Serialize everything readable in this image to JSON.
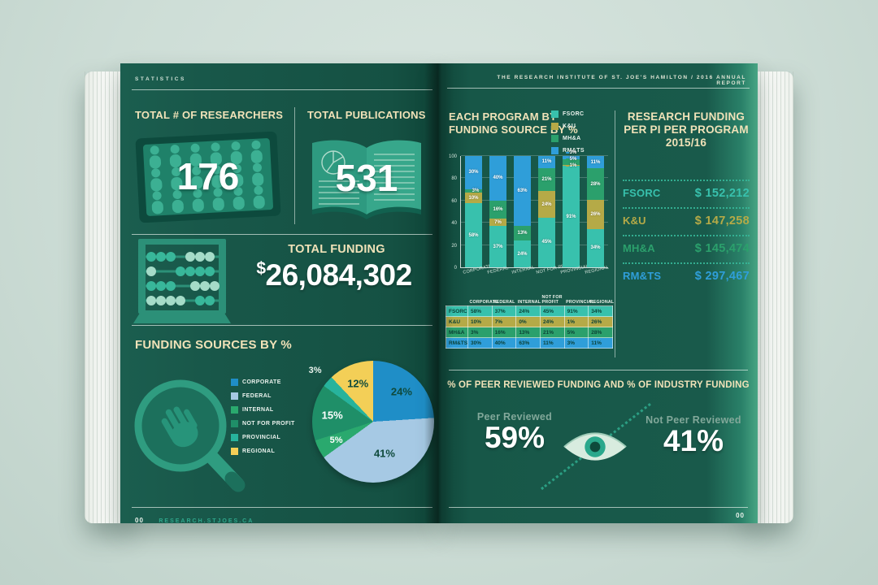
{
  "header": {
    "left": "STATISTICS",
    "right": "THE RESEARCH INSTITUTE OF ST. JOE'S HAMILTON / 2016 ANNUAL REPORT"
  },
  "footer": {
    "left_page_number": "00",
    "left_site": "RESEARCH.STJOES.CA",
    "right_page_number": "00"
  },
  "left_page": {
    "researchers": {
      "title": "TOTAL # OF RESEARCHERS",
      "value": "176"
    },
    "publications": {
      "title": "TOTAL PUBLICATIONS",
      "value": "531"
    },
    "total_funding": {
      "title": "TOTAL FUNDING",
      "currency": "$",
      "amount": "26,084,302"
    },
    "funding_sources": {
      "title": "FUNDING SOURCES BY %"
    }
  },
  "right_page": {
    "program_chart_title_line1": "EACH PROGRAM BY",
    "program_chart_title_line2": "FUNDING SOURCE BY %",
    "per_pi": {
      "title_line1": "RESEARCH FUNDING",
      "title_line2": "PER PI PER PROGRAM",
      "title_line3": "2015/16",
      "rows": [
        {
          "label": "FSORC",
          "value": "$ 152,212",
          "color": "#38c1ad"
        },
        {
          "label": "K&U",
          "value": "$ 147,258",
          "color": "#b5aa47"
        },
        {
          "label": "MH&A",
          "value": "$ 145,474",
          "color": "#2ba06c"
        },
        {
          "label": "RM&TS",
          "value": "$ 297,467",
          "color": "#2f9ed9"
        }
      ]
    },
    "peer": {
      "title": "% OF PEER REVIEWED FUNDING AND % OF INDUSTRY FUNDING",
      "left_label": "Peer Reviewed",
      "left_value": "59%",
      "right_label": "Not Peer Reviewed",
      "right_value": "41%"
    }
  },
  "icons": {
    "researchers": "people-board-icon",
    "publications": "open-book-icon",
    "total_funding": "abacus-icon",
    "funding_sources": "magnifier-hand-icon",
    "peer": "eye-icon"
  },
  "colors": {
    "page_green": "#175748",
    "cream": "#f0e2b8",
    "teal": "#38c1ad",
    "olive": "#b5aa47",
    "green": "#2ba06c",
    "blue": "#2f9ed9",
    "light_blue": "#a6c9e4",
    "yellow": "#f3cf57",
    "sage": "#82a89a"
  },
  "chart_data": [
    {
      "type": "pie",
      "title": "FUNDING SOURCES BY %",
      "labels": [
        "CORPORATE",
        "FEDERAL",
        "INTERNAL",
        "NOT FOR PROFIT",
        "PROVINCIAL",
        "REGIONAL"
      ],
      "values": [
        24,
        41,
        5,
        15,
        3,
        12
      ],
      "colors": [
        "#1f8ec7",
        "#a6c9e4",
        "#2aa96e",
        "#1f8f68",
        "#27b39c",
        "#f3cf57"
      ],
      "label_colors": [
        "#0f4a3c",
        "#0f4a3c",
        "#ffffff",
        "#ffffff",
        "#ffffff",
        "#0f4a3c"
      ],
      "label_format": "percent",
      "legend_position": "left"
    },
    {
      "type": "bar",
      "stacked": true,
      "percent": true,
      "title": "EACH PROGRAM BY FUNDING SOURCE BY %",
      "categories": [
        "CORPORATE",
        "FEDERAL",
        "INTERNAL",
        "NOT FOR PROFIT",
        "PROVINCIAL",
        "REGIONAL"
      ],
      "series": [
        {
          "name": "FSORC",
          "color": "#38c1ad",
          "values": [
            58,
            37,
            24,
            45,
            91,
            34
          ]
        },
        {
          "name": "K&U",
          "color": "#b5aa47",
          "values": [
            10,
            7,
            0,
            24,
            1,
            26
          ]
        },
        {
          "name": "MH&A",
          "color": "#2ba06c",
          "values": [
            3,
            16,
            13,
            21,
            5,
            28
          ]
        },
        {
          "name": "RM&TS",
          "color": "#2f9ed9",
          "values": [
            30,
            40,
            63,
            11,
            3,
            11
          ]
        }
      ],
      "ylim": [
        0,
        100
      ],
      "yticks": [
        0,
        20,
        40,
        60,
        80,
        100
      ],
      "legend_position": "top-right"
    },
    {
      "type": "table",
      "columns": [
        "",
        "CORPORATE",
        "FEDERAL",
        "INTERNAL",
        "NOT FOR PROFIT",
        "PROVINCIAL",
        "REGIONAL"
      ],
      "rows": [
        {
          "label": "FSORC",
          "color": "#38c1ad",
          "values": [
            "58%",
            "37%",
            "24%",
            "45%",
            "91%",
            "34%"
          ]
        },
        {
          "label": "K&U",
          "color": "#b5aa47",
          "values": [
            "10%",
            "7%",
            "0%",
            "24%",
            "1%",
            "26%"
          ]
        },
        {
          "label": "MH&A",
          "color": "#2ba06c",
          "values": [
            "3%",
            "16%",
            "13%",
            "21%",
            "5%",
            "28%"
          ]
        },
        {
          "label": "RM&TS",
          "color": "#2f9ed9",
          "values": [
            "30%",
            "40%",
            "63%",
            "11%",
            "3%",
            "11%"
          ]
        }
      ]
    }
  ]
}
